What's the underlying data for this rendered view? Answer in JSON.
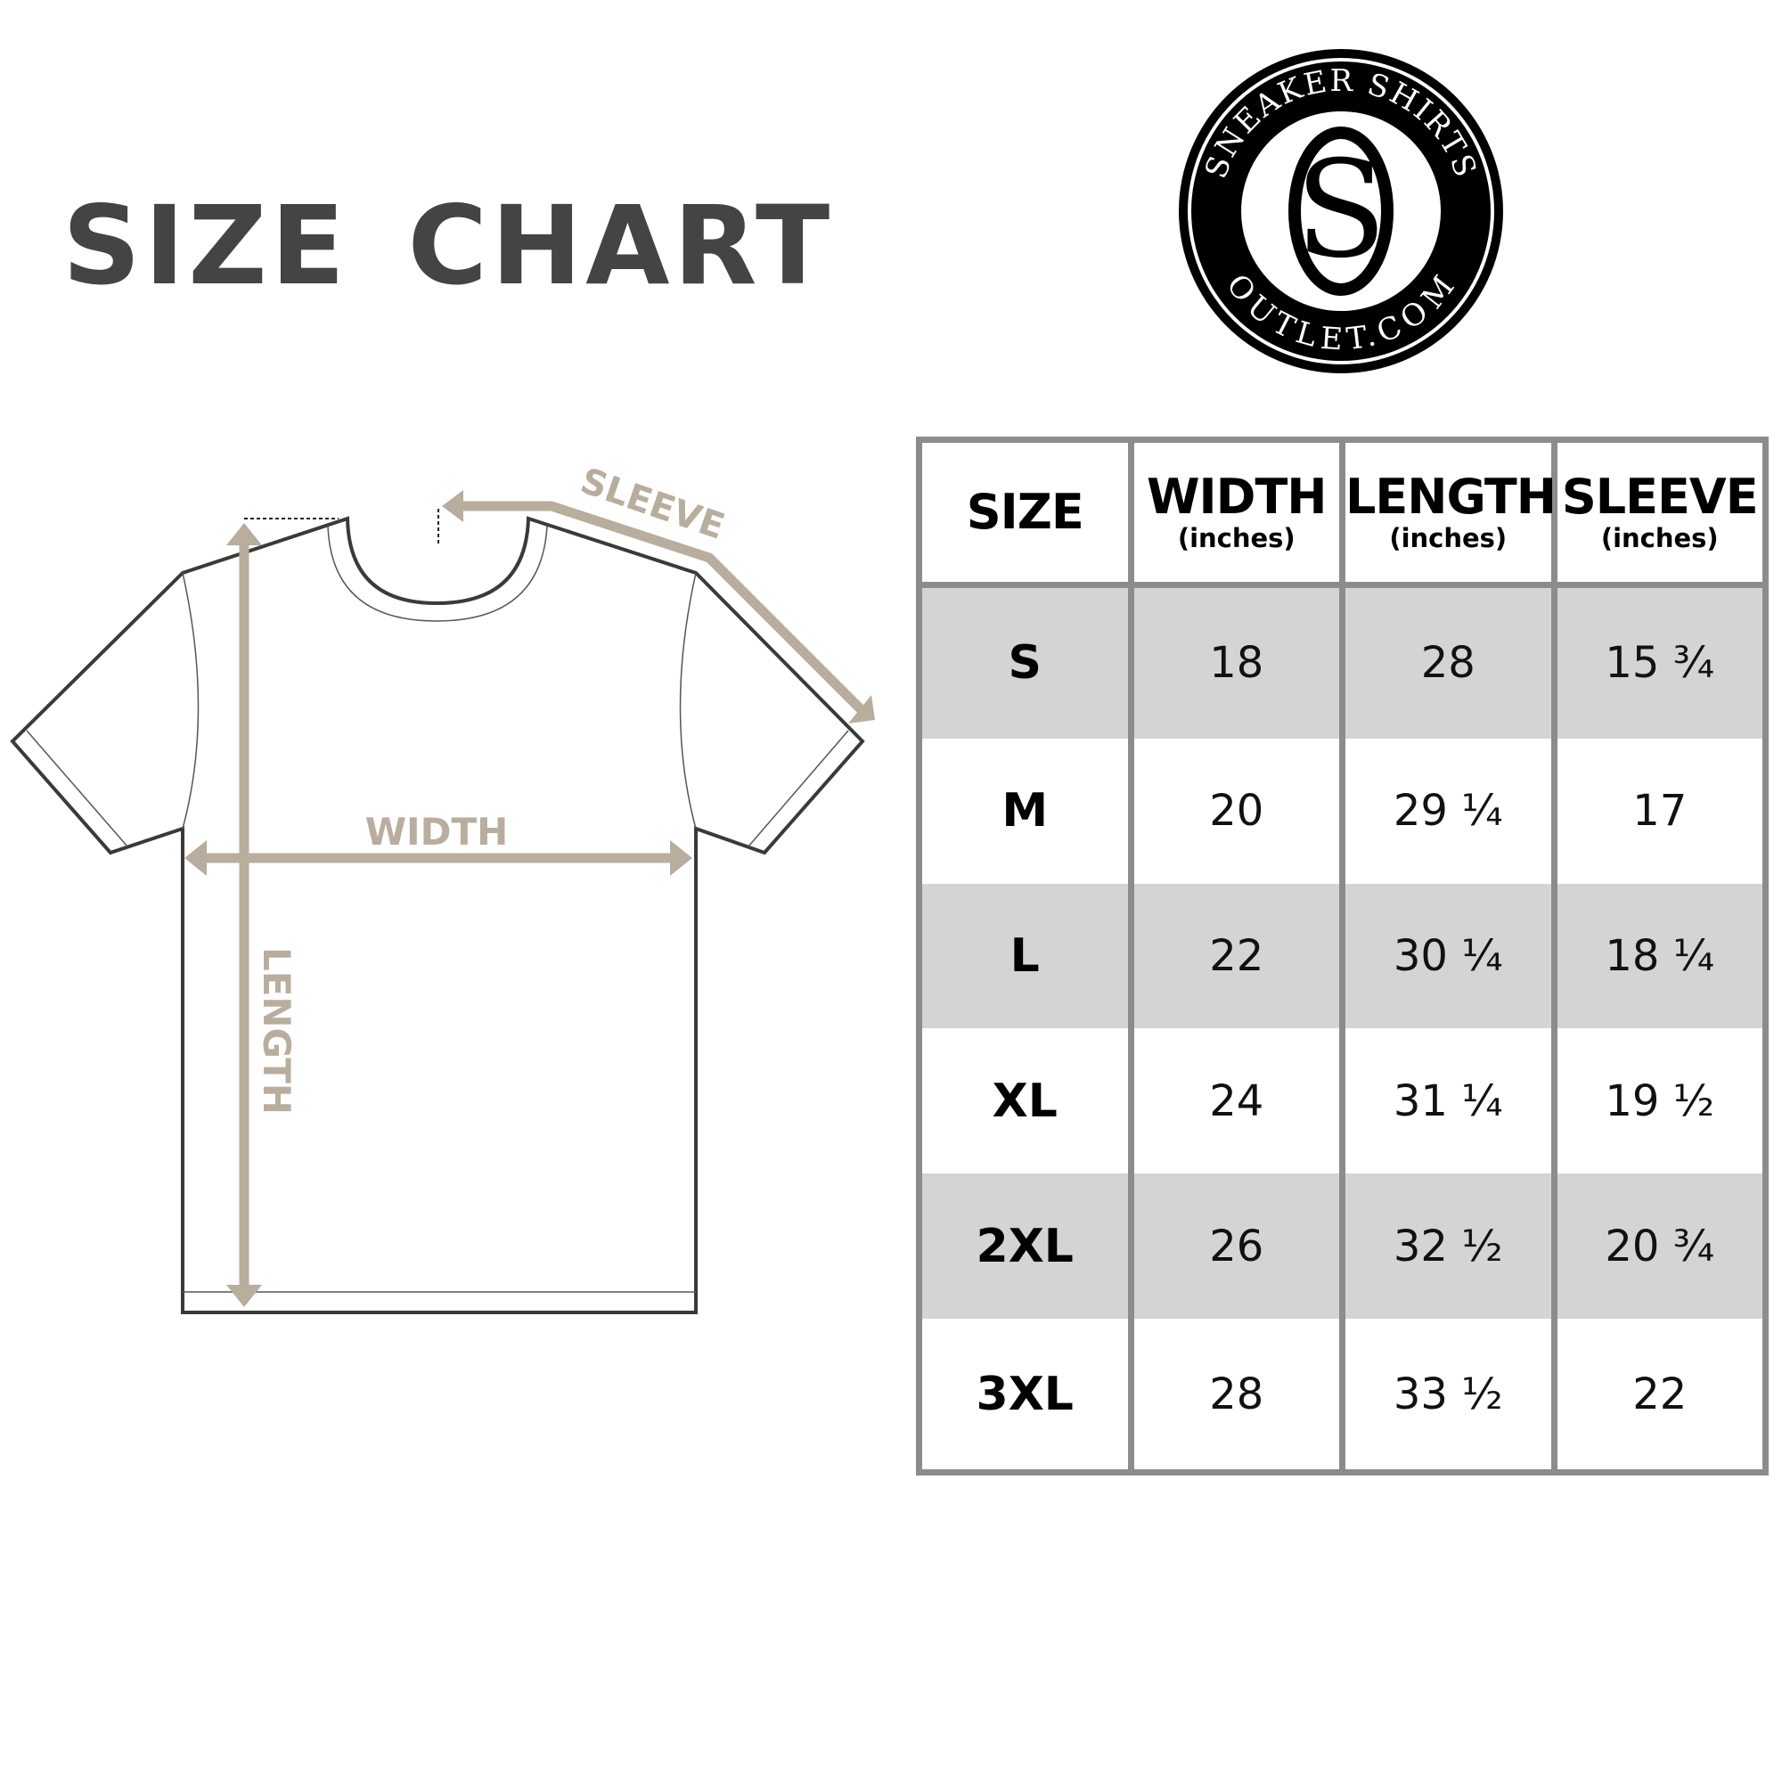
{
  "title": "SIZE CHART",
  "logo": {
    "top_text": "SNEAKER SHIRTS",
    "bottom_text": "OUTLET.COM",
    "monogram": "SO"
  },
  "diagram": {
    "labels": {
      "sleeve": "SLEEVE",
      "width": "WIDTH",
      "length": "LENGTH"
    },
    "arrow_color": "#b9ad9e",
    "outline_color": "#3a3a3a"
  },
  "table": {
    "headers": [
      {
        "label": "SIZE",
        "unit": ""
      },
      {
        "label": "WIDTH",
        "unit": "(inches)"
      },
      {
        "label": "LENGTH",
        "unit": "(inches)"
      },
      {
        "label": "SLEEVE",
        "unit": "(inches)"
      }
    ],
    "rows": [
      {
        "size": "S",
        "width": "18",
        "length": "28",
        "sleeve": "15 ¾"
      },
      {
        "size": "M",
        "width": "20",
        "length": "29 ¼",
        "sleeve": "17"
      },
      {
        "size": "L",
        "width": "22",
        "length": "30 ¼",
        "sleeve": "18 ¼"
      },
      {
        "size": "XL",
        "width": "24",
        "length": "31 ¼",
        "sleeve": "19 ½"
      },
      {
        "size": "2XL",
        "width": "26",
        "length": "32 ½",
        "sleeve": "20 ¾"
      },
      {
        "size": "3XL",
        "width": "28",
        "length": "33 ½",
        "sleeve": "22"
      }
    ],
    "shade_color": "#d4d4d4",
    "border_color": "#8c8c8c"
  }
}
